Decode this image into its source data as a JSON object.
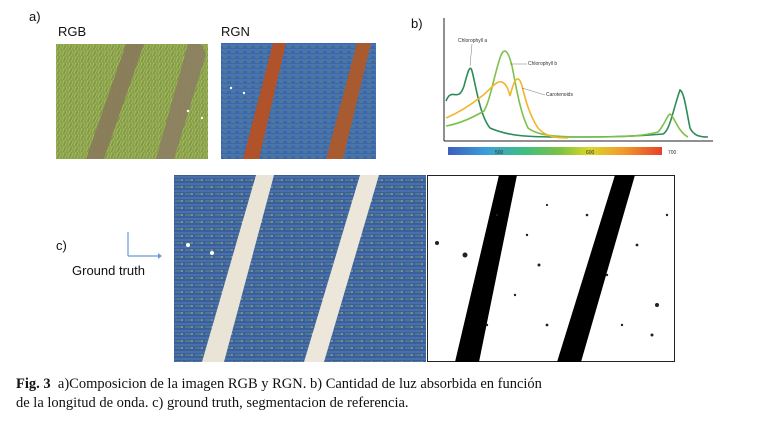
{
  "panels": {
    "a_label": "a)",
    "b_label": "b)",
    "c_label": "c)",
    "rgb_label": "RGB",
    "rgn_label": "RGN",
    "ground_truth_label": "Ground truth"
  },
  "chart_data": {
    "type": "line",
    "x_ticks": [
      "400",
      "500",
      "600",
      "700"
    ],
    "series": [
      {
        "name": "Chlorophyll a",
        "color": "#2e8b57"
      },
      {
        "name": "Chlorophyll b",
        "color": "#7cc24a"
      },
      {
        "name": "Carotenoids",
        "color": "#f2b52b"
      }
    ],
    "spectrum_colors": [
      "#3b5fc0",
      "#3aa0d8",
      "#3fbf7f",
      "#7bc142",
      "#d8d82a",
      "#f29a2a",
      "#e3422b"
    ]
  },
  "caption": {
    "fig_label": "Fig. 3",
    "text_line1": "a)Composicion de la imagen RGB y RGN. b) Cantidad de luz absorbida en función",
    "text_line2": "de la longitud de onda. c) ground truth, segmentacion de referencia."
  }
}
